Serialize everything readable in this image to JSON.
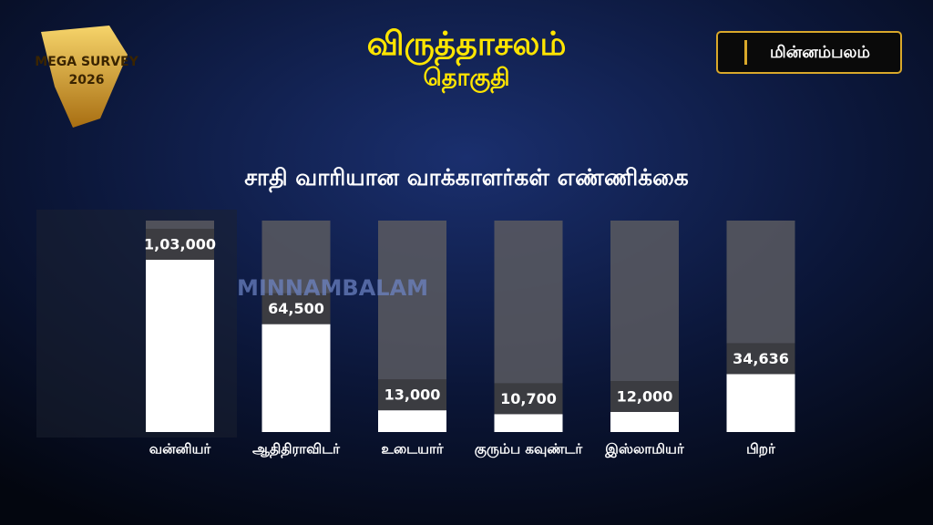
{
  "logo": {
    "title": "MEGA SURVEY",
    "year": "2026"
  },
  "brand": "மின்னம்பலம்",
  "watermark": "MINNAMBALAM",
  "chart_data": {
    "type": "bar",
    "title": "விருத்தாசலம்",
    "subtitle": "தொகுதி",
    "chart_title": "சாதி வாரியான வாக்காளர்கள்  எண்ணிக்கை",
    "categories": [
      "வன்னியர்",
      "ஆதிதிராவிடர்",
      "உடையார்",
      "குரும்ப கவுண்டர்",
      "இஸ்லாமியர்",
      "பிறர்"
    ],
    "values": [
      103000,
      64500,
      13000,
      10700,
      12000,
      34636
    ],
    "value_labels": [
      "1,03,000",
      "64,500",
      "13,000",
      "10,700",
      "12,000",
      "34,636"
    ],
    "color": "#ffffff"
  }
}
